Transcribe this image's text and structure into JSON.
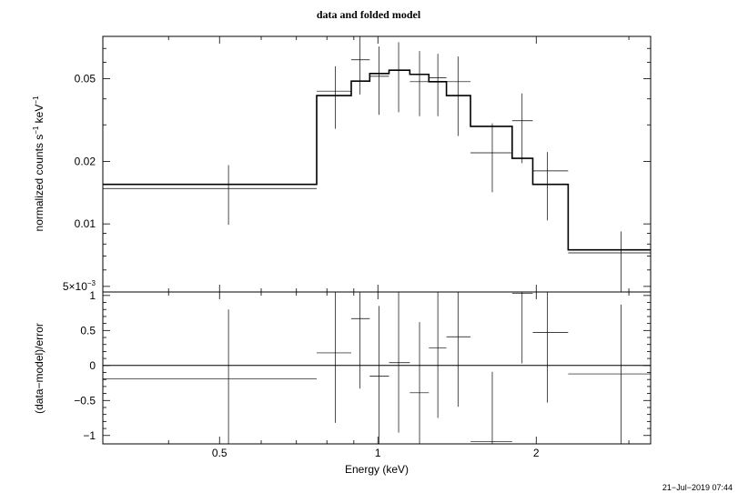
{
  "chart_data": [
    {
      "type": "line",
      "panel": "top",
      "title": "data and folded model",
      "ylabel_base": "normalized counts s",
      "ylabel_exp1": "−1",
      "ylabel_mid": " keV",
      "ylabel_exp2": "−1",
      "xscale": "log",
      "yscale": "log",
      "xlim": [
        0.3,
        3.3
      ],
      "ylim": [
        0.0047,
        0.08
      ],
      "y_tick_labels": [
        {
          "value": 0.05,
          "label": "0.05"
        },
        {
          "value": 0.02,
          "label": "0.02"
        },
        {
          "value": 0.01,
          "label": "0.01"
        },
        {
          "value": 0.005,
          "label": "5×10",
          "exp": "−3"
        }
      ],
      "series": [
        {
          "kind": "data_with_errors",
          "points": [
            {
              "x": 0.52,
              "x_lo": 0.3,
              "x_hi": 0.765,
              "y": 0.0148,
              "y_lo": 0.0099,
              "y_hi": 0.0192
            },
            {
              "x": 0.83,
              "x_lo": 0.765,
              "x_hi": 0.89,
              "y": 0.0436,
              "y_lo": 0.0287,
              "y_hi": 0.0574
            },
            {
              "x": 0.925,
              "x_lo": 0.89,
              "x_hi": 0.965,
              "y": 0.0617,
              "y_lo": 0.042,
              "y_hi": 0.082
            },
            {
              "x": 1.005,
              "x_lo": 0.965,
              "x_hi": 1.05,
              "y": 0.0514,
              "y_lo": 0.0335,
              "y_hi": 0.0715
            },
            {
              "x": 1.095,
              "x_lo": 1.05,
              "x_hi": 1.15,
              "y": 0.055,
              "y_lo": 0.0345,
              "y_hi": 0.075
            },
            {
              "x": 1.2,
              "x_lo": 1.15,
              "x_hi": 1.25,
              "y": 0.0484,
              "y_lo": 0.033,
              "y_hi": 0.068
            },
            {
              "x": 1.3,
              "x_lo": 1.25,
              "x_hi": 1.35,
              "y": 0.0505,
              "y_lo": 0.033,
              "y_hi": 0.066
            },
            {
              "x": 1.42,
              "x_lo": 1.35,
              "x_hi": 1.5,
              "y": 0.0484,
              "y_lo": 0.0265,
              "y_hi": 0.064
            },
            {
              "x": 1.65,
              "x_lo": 1.5,
              "x_hi": 1.8,
              "y": 0.022,
              "y_lo": 0.0142,
              "y_hi": 0.0305
            },
            {
              "x": 1.88,
              "x_lo": 1.8,
              "x_hi": 1.97,
              "y": 0.0314,
              "y_lo": 0.0196,
              "y_hi": 0.0425
            },
            {
              "x": 2.1,
              "x_lo": 1.97,
              "x_hi": 2.3,
              "y": 0.018,
              "y_lo": 0.0104,
              "y_hi": 0.0222
            },
            {
              "x": 2.9,
              "x_lo": 2.3,
              "x_hi": 3.3,
              "y": 0.00725,
              "y_lo": 0.0047,
              "y_hi": 0.0092
            }
          ]
        },
        {
          "kind": "model_step",
          "bins": [
            {
              "x_lo": 0.3,
              "x_hi": 0.765,
              "y": 0.0155
            },
            {
              "x_lo": 0.765,
              "x_hi": 0.89,
              "y": 0.0415
            },
            {
              "x_lo": 0.89,
              "x_hi": 0.965,
              "y": 0.0487
            },
            {
              "x_lo": 0.965,
              "x_hi": 1.05,
              "y": 0.053
            },
            {
              "x_lo": 1.05,
              "x_hi": 1.15,
              "y": 0.055
            },
            {
              "x_lo": 1.15,
              "x_hi": 1.25,
              "y": 0.0525
            },
            {
              "x_lo": 1.25,
              "x_hi": 1.35,
              "y": 0.0484
            },
            {
              "x_lo": 1.35,
              "x_hi": 1.5,
              "y": 0.0415
            },
            {
              "x_lo": 1.5,
              "x_hi": 1.8,
              "y": 0.0295
            },
            {
              "x_lo": 1.8,
              "x_hi": 1.97,
              "y": 0.0207
            },
            {
              "x_lo": 1.97,
              "x_hi": 2.3,
              "y": 0.0155
            },
            {
              "x_lo": 2.3,
              "x_hi": 3.3,
              "y": 0.0075
            }
          ]
        }
      ]
    },
    {
      "type": "scatter",
      "panel": "bottom",
      "ylabel": "(data−model)/error",
      "xlabel": "Energy (keV)",
      "xscale": "log",
      "xlim": [
        0.3,
        3.3
      ],
      "ylim": [
        -1.12,
        1.05
      ],
      "x_tick_labels": [
        {
          "value": 0.5,
          "label": "0.5"
        },
        {
          "value": 1,
          "label": "1"
        },
        {
          "value": 2,
          "label": "2"
        }
      ],
      "y_tick_labels": [
        {
          "value": 1,
          "label": "1"
        },
        {
          "value": 0.5,
          "label": "0.5"
        },
        {
          "value": 0,
          "label": "0"
        },
        {
          "value": -0.5,
          "label": "−0.5"
        },
        {
          "value": -1,
          "label": "−1"
        }
      ],
      "reference_line": 0,
      "points": [
        {
          "x": 0.52,
          "x_lo": 0.3,
          "x_hi": 0.765,
          "y": -0.19,
          "y_lo": -1.12,
          "y_hi": 0.8
        },
        {
          "x": 0.83,
          "x_lo": 0.765,
          "x_hi": 0.89,
          "y": 0.18,
          "y_lo": -0.82,
          "y_hi": 1.05
        },
        {
          "x": 0.925,
          "x_lo": 0.89,
          "x_hi": 0.965,
          "y": 0.67,
          "y_lo": -0.33,
          "y_hi": 1.05
        },
        {
          "x": 1.005,
          "x_lo": 0.965,
          "x_hi": 1.05,
          "y": -0.15,
          "y_lo": -1.12,
          "y_hi": 0.85
        },
        {
          "x": 1.095,
          "x_lo": 1.05,
          "x_hi": 1.15,
          "y": 0.04,
          "y_lo": -0.96,
          "y_hi": 1.05
        },
        {
          "x": 1.2,
          "x_lo": 1.15,
          "x_hi": 1.25,
          "y": -0.39,
          "y_lo": -1.12,
          "y_hi": 0.62
        },
        {
          "x": 1.3,
          "x_lo": 1.25,
          "x_hi": 1.35,
          "y": 0.25,
          "y_lo": -0.75,
          "y_hi": 1.05
        },
        {
          "x": 1.42,
          "x_lo": 1.35,
          "x_hi": 1.5,
          "y": 0.41,
          "y_lo": -0.59,
          "y_hi": 1.05
        },
        {
          "x": 1.65,
          "x_lo": 1.5,
          "x_hi": 1.8,
          "y": -1.09,
          "y_lo": -1.12,
          "y_hi": -0.09
        },
        {
          "x": 1.88,
          "x_lo": 1.8,
          "x_hi": 1.97,
          "y": 1.03,
          "y_lo": 0.03,
          "y_hi": 1.05
        },
        {
          "x": 2.1,
          "x_lo": 1.97,
          "x_hi": 2.3,
          "y": 0.47,
          "y_lo": -0.53,
          "y_hi": 1.05
        },
        {
          "x": 2.9,
          "x_lo": 2.3,
          "x_hi": 3.3,
          "y": -0.12,
          "y_lo": -1.12,
          "y_hi": 0.87
        }
      ]
    }
  ],
  "timestamp": "21−Jul−2019 07:44"
}
